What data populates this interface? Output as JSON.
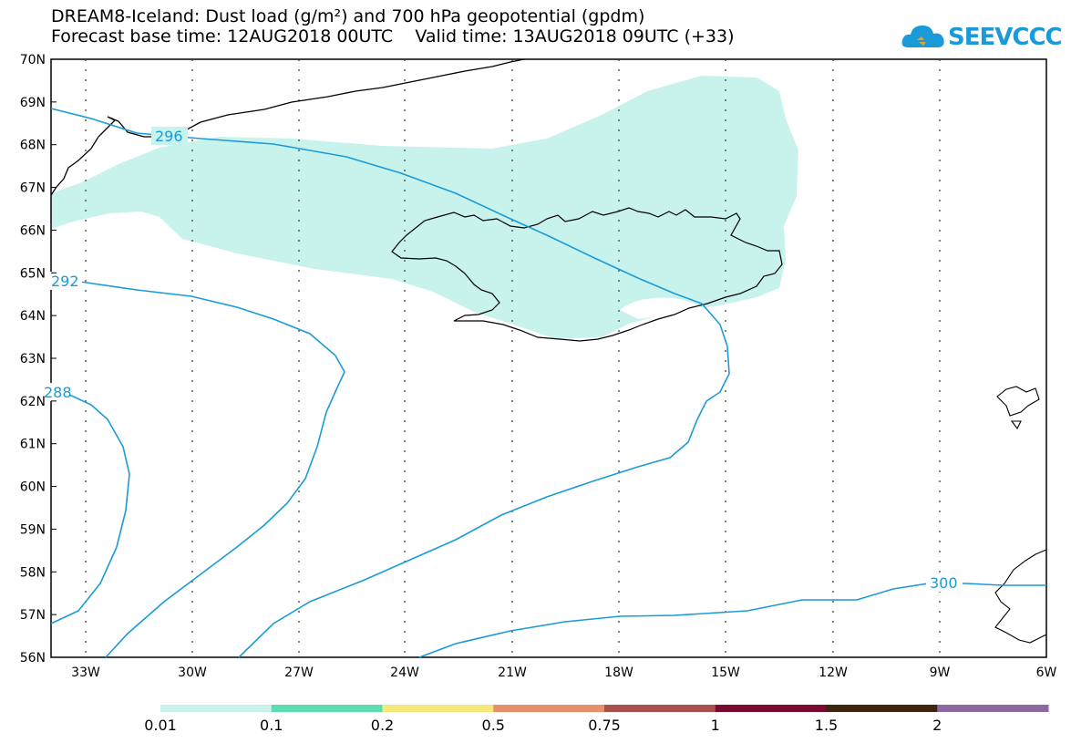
{
  "title_line1": "DREAM8-Iceland: Dust load (g/m²) and 700 hPa geopotential (gpdm)",
  "title_line2": "Forecast base time: 12AUG2018 00UTC    Valid time: 13AUG2018 09UTC (+33)",
  "logo_text": "SEEVCCC",
  "lat_labels": [
    "70N",
    "69N",
    "68N",
    "67N",
    "66N",
    "65N",
    "64N",
    "63N",
    "62N",
    "61N",
    "60N",
    "59N",
    "58N",
    "57N",
    "56N"
  ],
  "lon_labels": [
    "33W",
    "30W",
    "27W",
    "24W",
    "21W",
    "18W",
    "15W",
    "12W",
    "9W",
    "6W"
  ],
  "contour_labels": [
    "296",
    "292",
    "288",
    "300"
  ],
  "legend": {
    "levels": [
      "0.01",
      "0.1",
      "0.2",
      "0.5",
      "0.75",
      "1",
      "1.5",
      "2"
    ],
    "colors": [
      "#c8f2ec",
      "#5ddcb0",
      "#f4e87a",
      "#e88f6c",
      "#a8504c",
      "#7a0a30",
      "#3c2410",
      "#8c6aa0"
    ]
  },
  "colors": {
    "dust_fill": "#c8f2ec",
    "contour": "#1a9bd8",
    "coast": "#000000"
  }
}
